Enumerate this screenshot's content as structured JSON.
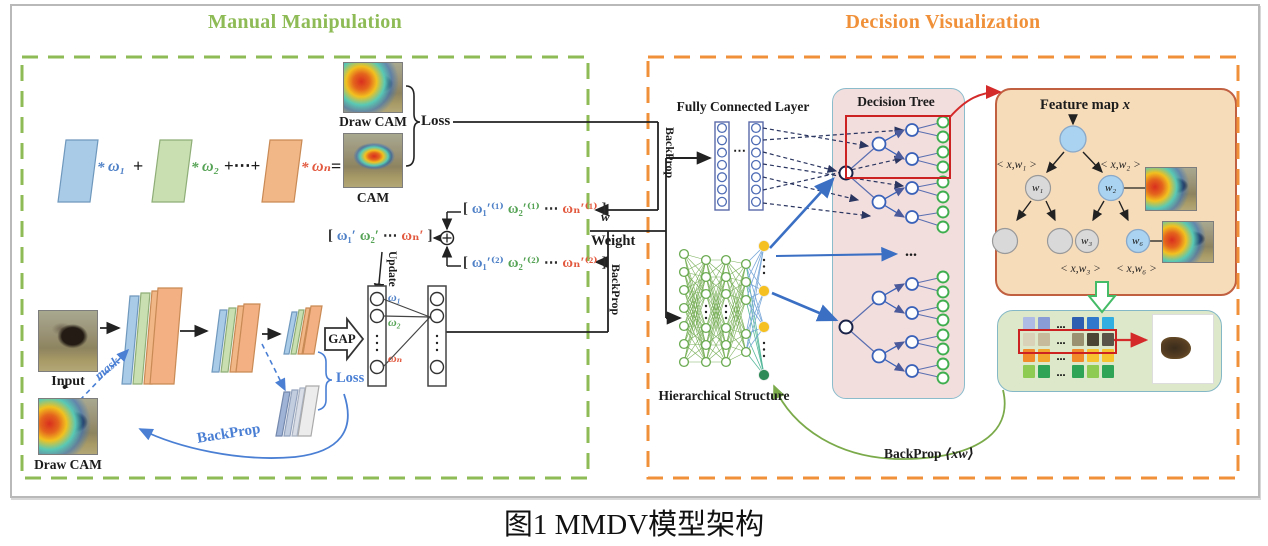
{
  "caption": "图1 MMDV模型架构",
  "sections": {
    "manual": {
      "title": "Manual Manipulation",
      "accent": "#8ebb55"
    },
    "decision": {
      "title": "Decision Visualization",
      "accent": "#f0913a"
    }
  },
  "formula": {
    "star1": "*",
    "omega1": "ω₁",
    "plus": "+",
    "star2": "*",
    "omega2": "ω₂",
    "plus_dots": "+⋯+",
    "star3": "*",
    "omegan": "ωₙ",
    "equals": "="
  },
  "cam_panel": {
    "draw_cam_label": "Draw CAM",
    "cam_label": "CAM",
    "loss": "Loss",
    "backprop": "BackProp",
    "w": "w",
    "weight": "Weight",
    "update": "Update",
    "backprop2": "BackProp"
  },
  "vectors": {
    "v1": [
      {
        "t": "[",
        "c": "#2b2b2b"
      },
      {
        "t": "ω₁′⁽¹⁾",
        "c": "#4f81c7"
      },
      {
        "t": "ω₂′⁽¹⁾",
        "c": "#56a356"
      },
      {
        "t": "⋯",
        "c": "#2b2b2b"
      },
      {
        "t": "ωₙ′⁽¹⁾",
        "c": "#e2593f"
      },
      {
        "t": "]",
        "c": "#2b2b2b"
      }
    ],
    "vm": [
      {
        "t": "[",
        "c": "#2b2b2b"
      },
      {
        "t": "ω₁′",
        "c": "#4f81c7"
      },
      {
        "t": "ω₂′",
        "c": "#56a356"
      },
      {
        "t": "⋯",
        "c": "#2b2b2b"
      },
      {
        "t": "ωₙ′",
        "c": "#e2593f"
      },
      {
        "t": "]",
        "c": "#2b2b2b"
      }
    ],
    "v2": [
      {
        "t": "[",
        "c": "#2b2b2b"
      },
      {
        "t": "ω₁′⁽²⁾",
        "c": "#4f81c7"
      },
      {
        "t": "ω₂′⁽²⁾",
        "c": "#56a356"
      },
      {
        "t": "⋯",
        "c": "#2b2b2b"
      },
      {
        "t": "ωₙ′⁽²⁾",
        "c": "#e2593f"
      },
      {
        "t": "]",
        "c": "#2b2b2b"
      }
    ]
  },
  "pipeline": {
    "input": "Input",
    "dot": "•",
    "draw_cam": "Draw CAM",
    "mask": "mask",
    "gap": "GAP",
    "loss": "Loss",
    "backprop": "BackProp",
    "omega1": "ω₁",
    "omega2": "ω₂",
    "omegan": "ωₙ"
  },
  "fc": {
    "label": "Fully Connected Layer",
    "dots": "⋯"
  },
  "hier": {
    "label": "Hierarchical Structure"
  },
  "tree": {
    "title": "Decision Tree",
    "dots": "..."
  },
  "feature": {
    "title": "Feature map",
    "var": "x",
    "xw1": "< x,w₁ >",
    "xw2": "< x,w₂ >",
    "xw3": "< x,w₃ >",
    "xw6": "< x,w₆ >",
    "w1": "w₁",
    "w2": "w₂",
    "w3": "w₃",
    "w6": "w₆"
  },
  "grid": {
    "dots": "...",
    "rows": [
      [
        "#aebce5",
        "#899cd6",
        "#2e5fb0",
        "#2f78cc",
        "#33aee0"
      ],
      [
        "#d9d2b8",
        "#c6bb9b",
        "#9a9171",
        "#4c4535",
        "#5a5348"
      ],
      [
        "#f28a2a",
        "#f2a62c",
        "#f28a2a",
        "#f7c32e",
        "#f7c32e"
      ],
      [
        "#8ecb52",
        "#2fa457",
        "#2fa457",
        "#8ecb52",
        "#2fa457"
      ]
    ]
  },
  "bottom": {
    "backprop": "BackProp",
    "sym": "⟨xw⟩"
  },
  "colors": {
    "omega_blue": "#4f81c7",
    "omega_green": "#56a356",
    "omega_red": "#e2593f",
    "slab_blue": "#aacbe8",
    "slab_green": "#c9dfb2",
    "slab_orange": "#f2b787",
    "tree_blue": "#3a62b8",
    "tree_green": "#3fae4e",
    "net_green": "#6aaa50",
    "highlight_red": "#cc2222",
    "loss_blue": "#4a7fd4"
  }
}
